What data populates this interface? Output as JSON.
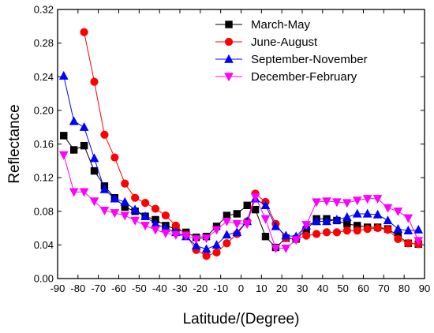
{
  "chart_data": {
    "type": "line",
    "xlabel": "Latitude/(Degree)",
    "ylabel": "Reflectance",
    "xlim": [
      -90,
      90
    ],
    "ylim": [
      0,
      0.32
    ],
    "xticks": [
      -90,
      -80,
      -70,
      -60,
      -50,
      -40,
      -30,
      -20,
      -10,
      0,
      10,
      20,
      30,
      40,
      50,
      60,
      70,
      80,
      90
    ],
    "yticks": [
      "0.00",
      "0.04",
      "0.08",
      "0.12",
      "0.16",
      "0.20",
      "0.24",
      "0.28",
      "0.32"
    ],
    "legend_position": "top-right",
    "grid": false,
    "series": [
      {
        "name": "March-May",
        "color": "#000000",
        "marker": "square",
        "x": [
          -87,
          -82,
          -77,
          -72,
          -67,
          -62,
          -57,
          -52,
          -47,
          -42,
          -37,
          -32,
          -27,
          -22,
          -17,
          -12,
          -7,
          -2,
          3,
          7,
          12,
          17,
          22,
          27,
          32,
          37,
          42,
          47,
          52,
          57,
          62,
          67,
          72,
          77,
          82,
          87
        ],
        "values": [
          0.17,
          0.153,
          0.158,
          0.128,
          0.11,
          0.096,
          0.085,
          0.08,
          0.074,
          0.07,
          0.063,
          0.059,
          0.055,
          0.049,
          0.05,
          0.062,
          0.075,
          0.077,
          0.087,
          0.082,
          0.05,
          0.037,
          0.048,
          0.047,
          0.058,
          0.071,
          0.071,
          0.069,
          0.065,
          0.063,
          0.061,
          0.061,
          0.059,
          0.051,
          0.042,
          0.041
        ]
      },
      {
        "name": "June-August",
        "color": "#ff0000",
        "marker": "circle",
        "x": [
          -77,
          -72,
          -67,
          -62,
          -57,
          -52,
          -47,
          -42,
          -37,
          -32,
          -27,
          -22,
          -17,
          -12,
          -7,
          -2,
          3,
          7,
          12,
          17,
          22,
          27,
          32,
          37,
          42,
          47,
          52,
          57,
          62,
          67,
          72,
          77,
          82,
          87
        ],
        "values": [
          0.293,
          0.234,
          0.171,
          0.144,
          0.113,
          0.096,
          0.09,
          0.083,
          0.075,
          0.063,
          0.052,
          0.034,
          0.027,
          0.031,
          0.042,
          0.053,
          0.068,
          0.101,
          0.091,
          0.065,
          0.048,
          0.047,
          0.051,
          0.053,
          0.055,
          0.055,
          0.057,
          0.057,
          0.059,
          0.06,
          0.058,
          0.047,
          0.042,
          0.041
        ]
      },
      {
        "name": "September-November",
        "color": "#0000ff",
        "marker": "triangle-up",
        "x": [
          -87,
          -82,
          -77,
          -72,
          -67,
          -62,
          -57,
          -52,
          -47,
          -42,
          -37,
          -32,
          -27,
          -22,
          -17,
          -12,
          -7,
          -2,
          3,
          7,
          12,
          17,
          22,
          27,
          32,
          37,
          42,
          47,
          52,
          57,
          62,
          67,
          72,
          77,
          82,
          87
        ],
        "values": [
          0.241,
          0.187,
          0.18,
          0.143,
          0.106,
          0.095,
          0.091,
          0.082,
          0.074,
          0.065,
          0.06,
          0.055,
          0.05,
          0.039,
          0.035,
          0.04,
          0.052,
          0.055,
          0.068,
          0.095,
          0.087,
          0.062,
          0.051,
          0.05,
          0.063,
          0.068,
          0.068,
          0.07,
          0.073,
          0.077,
          0.077,
          0.076,
          0.069,
          0.059,
          0.057,
          0.058
        ]
      },
      {
        "name": "December-February",
        "color": "#ff00ff",
        "marker": "triangle-down",
        "x": [
          -87,
          -82,
          -77,
          -72,
          -67,
          -62,
          -57,
          -52,
          -47,
          -42,
          -37,
          -32,
          -27,
          -22,
          -17,
          -12,
          -7,
          -2,
          3,
          7,
          12,
          17,
          22,
          27,
          32,
          37,
          42,
          47,
          52,
          57,
          62,
          67,
          72,
          77,
          82,
          87
        ],
        "values": [
          0.147,
          0.103,
          0.103,
          0.092,
          0.081,
          0.078,
          0.075,
          0.069,
          0.063,
          0.058,
          0.054,
          0.052,
          0.051,
          0.047,
          0.048,
          0.058,
          0.068,
          0.065,
          0.065,
          0.097,
          0.071,
          0.036,
          0.036,
          0.046,
          0.064,
          0.091,
          0.092,
          0.091,
          0.09,
          0.093,
          0.095,
          0.095,
          0.084,
          0.08,
          0.072,
          0.045
        ]
      }
    ]
  }
}
